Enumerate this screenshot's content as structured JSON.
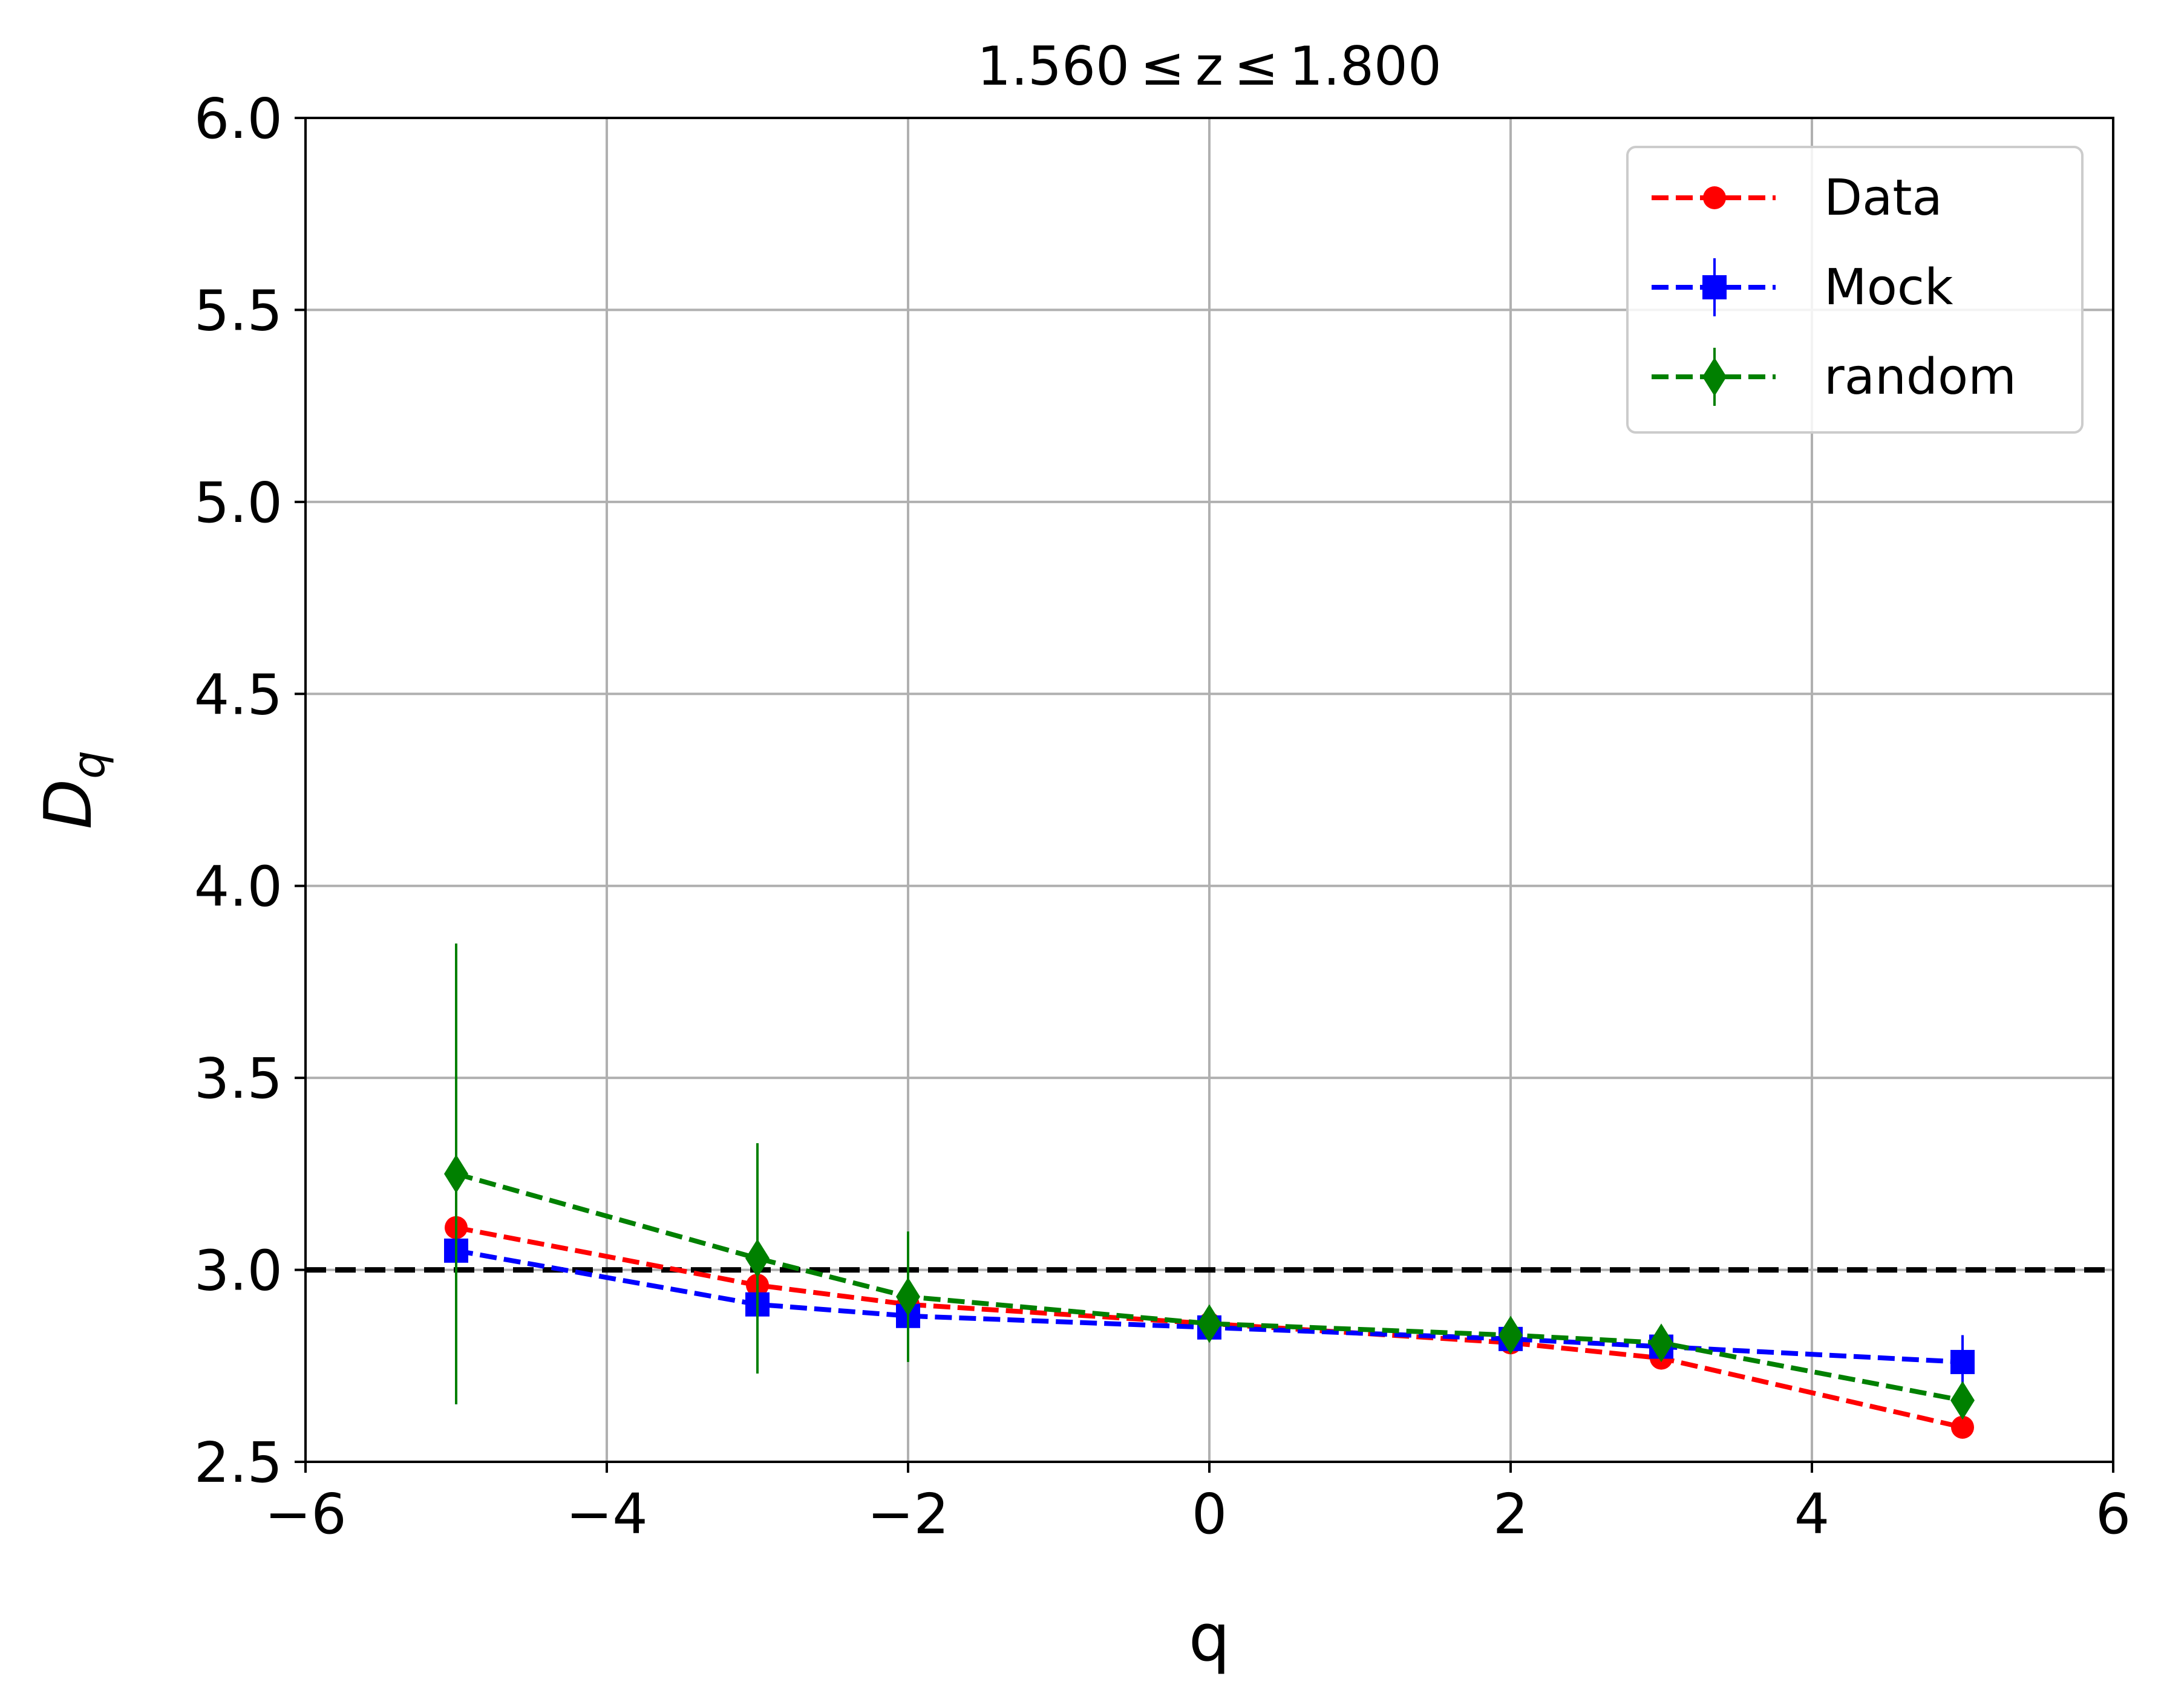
{
  "chart_data": {
    "type": "line",
    "title": "1.560 ≤ z ≤ 1.800",
    "xlabel": "q",
    "ylabel": "D",
    "ylabel_sub": "q",
    "xlim": [
      -6,
      6
    ],
    "ylim": [
      2.5,
      6.0
    ],
    "xticks": [
      -6,
      -4,
      -2,
      0,
      2,
      4,
      6
    ],
    "xtick_labels": [
      "−6",
      "−4",
      "−2",
      "0",
      "2",
      "4",
      "6"
    ],
    "yticks": [
      2.5,
      3.0,
      3.5,
      4.0,
      4.5,
      5.0,
      5.5,
      6.0
    ],
    "ytick_labels": [
      "2.5",
      "3.0",
      "3.5",
      "4.0",
      "4.5",
      "5.0",
      "5.5",
      "6.0"
    ],
    "grid": true,
    "legend_position": "top-right",
    "reference_line": {
      "y": 3.0,
      "color": "#000000",
      "style": "dashed"
    },
    "series": [
      {
        "name": "Data",
        "color": "#ff0000",
        "marker": "circle",
        "x": [
          -5,
          -3,
          -2,
          0,
          2,
          3,
          5
        ],
        "y": [
          3.11,
          2.96,
          2.91,
          2.86,
          2.81,
          2.77,
          2.59
        ],
        "yerr": [
          0,
          0,
          0,
          0,
          0,
          0,
          0
        ]
      },
      {
        "name": "Mock",
        "color": "#0000ff",
        "marker": "square",
        "x": [
          -5,
          -3,
          -2,
          0,
          2,
          3,
          5
        ],
        "y": [
          3.05,
          2.91,
          2.88,
          2.85,
          2.82,
          2.8,
          2.76
        ],
        "yerr": [
          0.4,
          0.02,
          0.02,
          0.02,
          0.02,
          0.02,
          0.07
        ]
      },
      {
        "name": "random",
        "color": "#008000",
        "marker": "diamond",
        "x": [
          -5,
          -3,
          -2,
          0,
          2,
          3,
          5
        ],
        "y": [
          3.25,
          3.03,
          2.93,
          2.86,
          2.83,
          2.81,
          2.66
        ],
        "yerr": [
          0.6,
          0.3,
          0.17,
          0.03,
          0.03,
          0.03,
          0.03
        ]
      }
    ]
  }
}
